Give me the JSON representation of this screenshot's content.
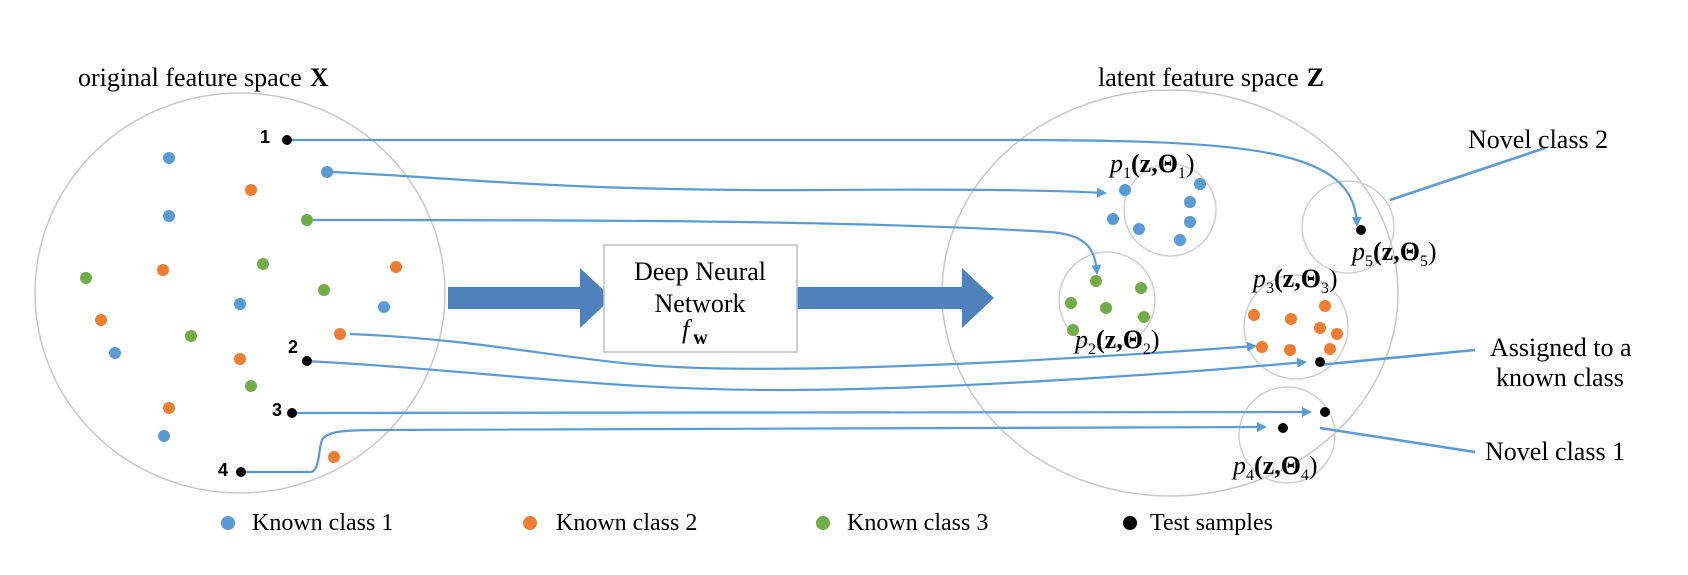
{
  "titles": {
    "original_space": "original feature space",
    "original_symbol": "X",
    "latent_space": "latent feature space",
    "latent_symbol": "Z"
  },
  "network": {
    "line1": "Deep Neural",
    "line2": "Network",
    "func": "f",
    "func_sub": "w"
  },
  "test_samples": [
    "1",
    "2",
    "3",
    "4"
  ],
  "clusters": [
    {
      "p": "p",
      "sub": "1",
      "body": "(z,Θ",
      "sub2": "1",
      "close": ")"
    },
    {
      "p": "p",
      "sub": "2",
      "body": "(z,Θ",
      "sub2": "2",
      "close": ")"
    },
    {
      "p": "p",
      "sub": "3",
      "body": "(z,Θ",
      "sub2": "3",
      "close": ")"
    },
    {
      "p": "p",
      "sub": "4",
      "body": "(z,Θ",
      "sub2": "4",
      "close": ")"
    },
    {
      "p": "p",
      "sub": "5",
      "body": "(z,Θ",
      "sub2": "5",
      "close": ")"
    }
  ],
  "callouts": {
    "novel2": "Novel class 2",
    "assigned_line1": "Assigned to a",
    "assigned_line2": "known class",
    "novel1": "Novel class 1"
  },
  "legend": [
    {
      "label": "Known class 1",
      "color": "#5b9bd5"
    },
    {
      "label": "Known class 2",
      "color": "#ed7d31"
    },
    {
      "label": "Known class 3",
      "color": "#70ad47"
    },
    {
      "label": "Test samples",
      "color": "#000000"
    }
  ],
  "colors": {
    "class1": "#5b9bd5",
    "class2": "#ed7d31",
    "class3": "#70ad47",
    "test": "#000000",
    "arrow": "#5b9bd5",
    "block_arrow": "#4f81bd"
  }
}
